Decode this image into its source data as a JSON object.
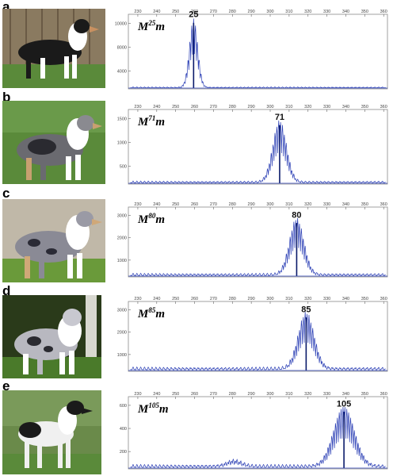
{
  "figure": {
    "panels": [
      {
        "letter": "a",
        "allele_base": "M",
        "allele_sup": "25",
        "allele_suffix": "m",
        "peak_label": "25",
        "dog_description": "tricolor black shepherd dog in profile",
        "photo_colors": {
          "background": "#8a7a60",
          "ground": "#5a8a3a",
          "coat": "#1a1a1a",
          "accent": "#ffffff"
        }
      },
      {
        "letter": "b",
        "allele_base": "M",
        "allele_sup": "71",
        "allele_suffix": "m",
        "peak_label": "71",
        "dog_description": "merle sheltie on grass",
        "photo_colors": {
          "background": "#5a8a3a",
          "ground": "#4a7a2a",
          "coat": "#6a6a70",
          "accent": "#c8a070"
        }
      },
      {
        "letter": "c",
        "allele_base": "M",
        "allele_sup": "80",
        "allele_suffix": "m",
        "peak_label": "80",
        "dog_description": "blue merle collie",
        "photo_colors": {
          "background": "#c0b8a8",
          "ground": "#6a9a3a",
          "coat": "#8a8a95",
          "accent": "#d0a878"
        }
      },
      {
        "letter": "d",
        "allele_base": "M",
        "allele_sup": "85",
        "allele_suffix": "m",
        "peak_label": "85",
        "dog_description": "merle shepherd in front of tree",
        "photo_colors": {
          "background": "#2a3a1a",
          "ground": "#4a7a2a",
          "coat": "#b8b8c0",
          "accent": "#ffffff"
        }
      },
      {
        "letter": "e",
        "allele_base": "M",
        "allele_sup": "105",
        "allele_suffix": "m",
        "peak_label": "105",
        "dog_description": "white smooth collie with black patches",
        "photo_colors": {
          "background": "#6a8a4a",
          "ground": "#5a8a3a",
          "coat": "#f0f0f0",
          "accent": "#1a1a1a"
        }
      }
    ]
  },
  "chart_data": [
    {
      "type": "line",
      "x_ticks": [
        "230",
        "240",
        "250",
        "260",
        "270",
        "280",
        "290",
        "300",
        "310",
        "320",
        "330",
        "340",
        "350",
        "360"
      ],
      "y_ticks": [
        "10000",
        "8000",
        "4000"
      ],
      "peak_x": 259.5,
      "peak_height": 0.92,
      "spread": 2.2,
      "baseline_noise": 0.015,
      "shoulder": null,
      "series_color": "#2b3fb5"
    },
    {
      "type": "line",
      "x_ticks": [
        "230",
        "240",
        "250",
        "260",
        "270",
        "280",
        "290",
        "300",
        "310",
        "320",
        "330",
        "340",
        "350",
        "360"
      ],
      "y_ticks": [
        "1500",
        "1000",
        "500"
      ],
      "peak_x": 305,
      "peak_height": 0.82,
      "spread": 3.6,
      "baseline_noise": 0.03,
      "shoulder": null,
      "series_color": "#2b3fb5"
    },
    {
      "type": "line",
      "x_ticks": [
        "230",
        "240",
        "250",
        "260",
        "270",
        "280",
        "290",
        "300",
        "310",
        "320",
        "330",
        "340",
        "350",
        "360"
      ],
      "y_ticks": [
        "3000",
        "2000",
        "1000"
      ],
      "peak_x": 314,
      "peak_height": 0.8,
      "spread": 3.8,
      "baseline_noise": 0.04,
      "shoulder": null,
      "series_color": "#2b3fb5"
    },
    {
      "type": "line",
      "x_ticks": [
        "230",
        "240",
        "250",
        "260",
        "270",
        "280",
        "290",
        "300",
        "310",
        "320",
        "330",
        "340",
        "350",
        "360"
      ],
      "y_ticks": [
        "3000",
        "2000",
        "1000"
      ],
      "peak_x": 319,
      "peak_height": 0.8,
      "spread": 4.2,
      "baseline_noise": 0.05,
      "shoulder": null,
      "series_color": "#2b3fb5"
    },
    {
      "type": "line",
      "x_ticks": [
        "230",
        "240",
        "250",
        "260",
        "270",
        "280",
        "290",
        "300",
        "310",
        "320",
        "330",
        "340",
        "350",
        "360"
      ],
      "y_ticks": [
        "600",
        "400",
        "200"
      ],
      "peak_x": 339,
      "peak_height": 0.82,
      "spread": 5.5,
      "baseline_noise": 0.05,
      "shoulder": {
        "x": 281,
        "height": 0.08,
        "spread": 4
      },
      "series_color": "#2b3fb5"
    }
  ]
}
